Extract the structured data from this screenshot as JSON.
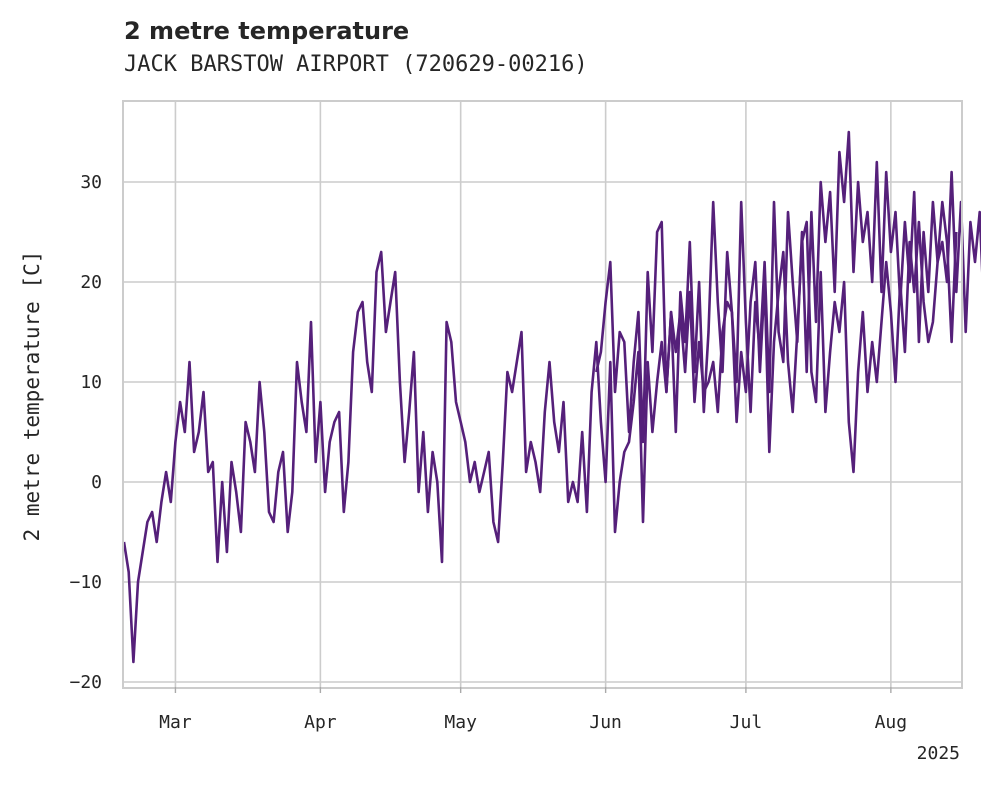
{
  "chart_data": {
    "type": "line",
    "title": "2 metre temperature",
    "subtitle": "JACK BARSTOW AIRPORT (720629-00216)",
    "xlabel": "",
    "ylabel": "2 metre temperature [C]",
    "xlim": [
      "2025-02-18",
      "2025-08-16"
    ],
    "ylim": [
      -20.5,
      38
    ],
    "grid": true,
    "legend": "none",
    "line_color": "#55207a",
    "y_ticks": [
      -20,
      -10,
      0,
      10,
      20,
      30
    ],
    "x_ticks": [
      {
        "date": "2025-03-01",
        "label": "Mar"
      },
      {
        "date": "2025-04-01",
        "label": "Apr"
      },
      {
        "date": "2025-05-01",
        "label": "May"
      },
      {
        "date": "2025-06-01",
        "label": "Jun"
      },
      {
        "date": "2025-07-01",
        "label": "Jul"
      },
      {
        "date": "2025-08-01",
        "label": "Aug"
      }
    ],
    "x_offset_label": "2025",
    "series": [
      {
        "segments": [
          {
            "start": "2025-02-18",
            "values": [
              -6,
              -9,
              -18,
              -10,
              -7,
              -4,
              -3,
              -6,
              -2,
              1,
              -2,
              4,
              8,
              5,
              12,
              3,
              5,
              9,
              1,
              2,
              -8,
              0,
              -7,
              2,
              -1,
              -5,
              6,
              4,
              1,
              10,
              5,
              -3,
              -4,
              1,
              3,
              -5,
              -1,
              12,
              8,
              5,
              16,
              2,
              8,
              -1,
              4,
              6,
              7,
              -3,
              2,
              13,
              17,
              18,
              12,
              9,
              21,
              23,
              15,
              18,
              21,
              10,
              2,
              7,
              13,
              -1,
              5,
              -3,
              3,
              0,
              -8,
              16,
              14,
              8,
              6,
              4,
              0,
              2,
              -1,
              1,
              3,
              -4,
              -6,
              2,
              11,
              9,
              12,
              15,
              1,
              4,
              2,
              -1,
              7,
              12,
              6,
              3,
              8,
              -2,
              0,
              -2,
              5,
              -3,
              9,
              14,
              6,
              0,
              12,
              -5,
              0,
              3,
              4,
              8,
              13,
              -4,
              12,
              5,
              10,
              14,
              9,
              17,
              13,
              17,
              11,
              19,
              8,
              14,
              9,
              10,
              12,
              7,
              15,
              18,
              17,
              6,
              13,
              9,
              18,
              22,
              11,
              20,
              3,
              14,
              19,
              23,
              12,
              7,
              15,
              24,
              26,
              11,
              8,
              21,
              7,
              13,
              18,
              15,
              20,
              6,
              1,
              11,
              17,
              9,
              14,
              10,
              16,
              22,
              17,
              10,
              20,
              13,
              24,
              19,
              26,
              18,
              14,
              16,
              22,
              28,
              24,
              14,
              25
            ]
          },
          {
            "start": "2025-05-30",
            "values": [
              11,
              13,
              18,
              22,
              9,
              15,
              14,
              5,
              12,
              17,
              4,
              21,
              13,
              25,
              26,
              9,
              17,
              5,
              19,
              14,
              24,
              11,
              20,
              7,
              15,
              28,
              18,
              11,
              23,
              17,
              10,
              28,
              16,
              7,
              18,
              13,
              22,
              9,
              28,
              15,
              12,
              27,
              20,
              14,
              25,
              11,
              27,
              16,
              30,
              24,
              29,
              19,
              33,
              28,
              35,
              21,
              30,
              24,
              27,
              20,
              32,
              19,
              31,
              23,
              27,
              18,
              26,
              20,
              29,
              14,
              25,
              19,
              28,
              22,
              24,
              20,
              31,
              19,
              28,
              15,
              26,
              22,
              27,
              16,
              24,
              11,
              28,
              19,
              29,
              22,
              27,
              12,
              30,
              17,
              25,
              21,
              28,
              16,
              23,
              13,
              25,
              10,
              29,
              18,
              27,
              21,
              28,
              22,
              24,
              14,
              30,
              18,
              25,
              15,
              32,
              20,
              28,
              13,
              33,
              19,
              25,
              12,
              27,
              20,
              23,
              18,
              28,
              14,
              32,
              16,
              26,
              11,
              30,
              24,
              28,
              10,
              27,
              14,
              31,
              19,
              29,
              13,
              33,
              22,
              26,
              31,
              24,
              33,
              21,
              26,
              19,
              28,
              32,
              27,
              21
            ]
          }
        ]
      }
    ]
  }
}
